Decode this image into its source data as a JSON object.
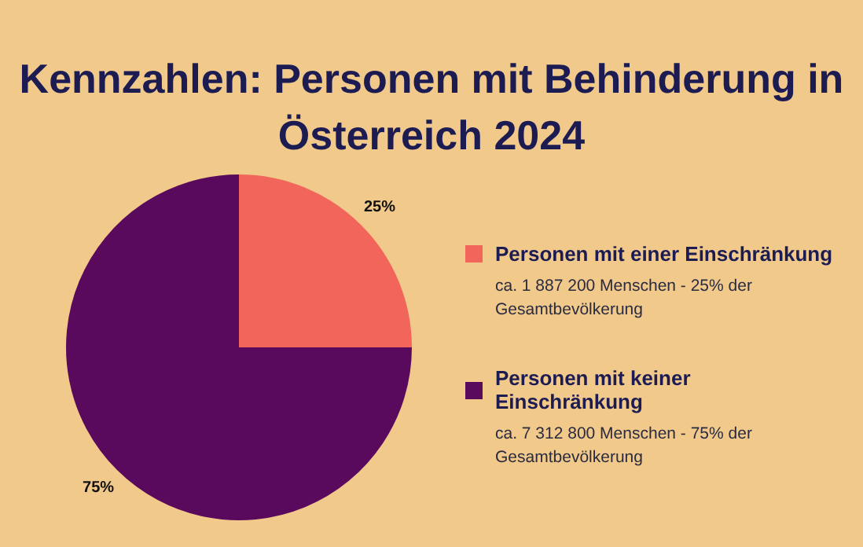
{
  "chart_data": {
    "type": "pie",
    "title": "Kennzahlen: Personen mit Behinderung in Österreich 2024",
    "categories": [
      "Personen mit einer Einschränkung",
      "Personen mit keiner Einschränkung"
    ],
    "values": [
      25,
      75
    ],
    "colors": [
      "#f2655a",
      "#5a0a5c"
    ],
    "value_labels": [
      "25%",
      "75%"
    ],
    "annotations": [
      "ca. 1 887 200 Menschen - 25% der Gesamtbevölkerung",
      "ca. 7 312 800 Menschen - 75% der Gesamtbevölkerung"
    ],
    "legend": "right"
  }
}
